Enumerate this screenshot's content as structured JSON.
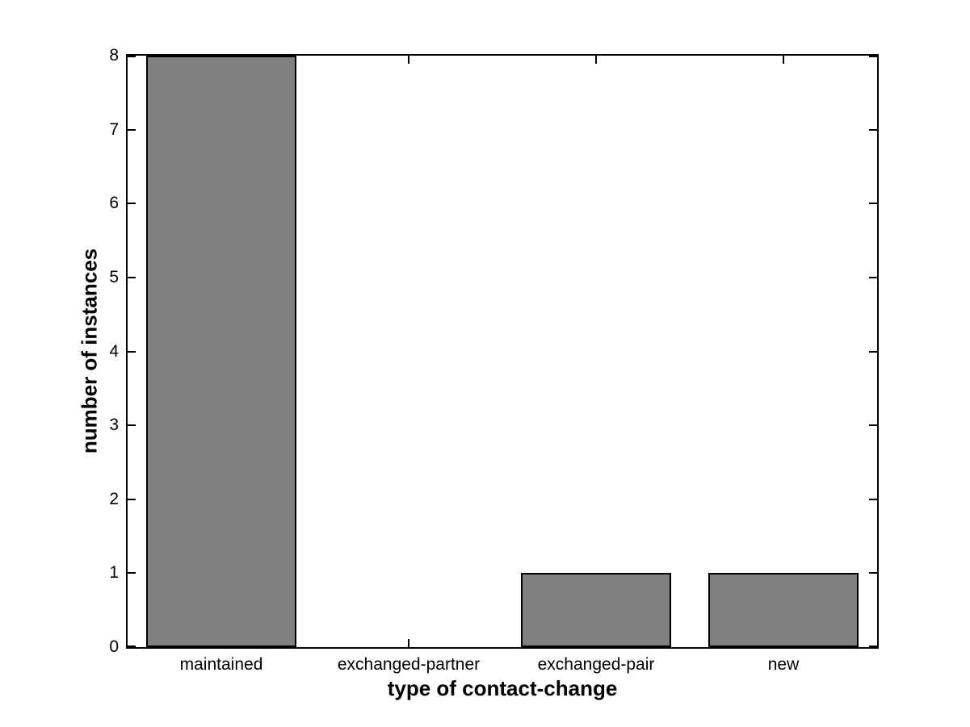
{
  "figure": {
    "background": "#ffffff"
  },
  "chart_data": {
    "type": "bar",
    "categories": [
      "maintained",
      "exchanged-partner",
      "exchanged-pair",
      "new"
    ],
    "values": [
      8,
      0,
      1,
      1
    ],
    "xlabel": "type of contact-change",
    "ylabel": "number of instances",
    "ylim": [
      0,
      8
    ],
    "yticks": [
      0,
      1,
      2,
      3,
      4,
      5,
      6,
      7,
      8
    ],
    "bar_color": "#7f7f7f",
    "bar_edge_color": "#000000",
    "axis_color": "#000000",
    "bar_width_fraction": 0.8,
    "tick_direction": "in",
    "grid": false
  }
}
